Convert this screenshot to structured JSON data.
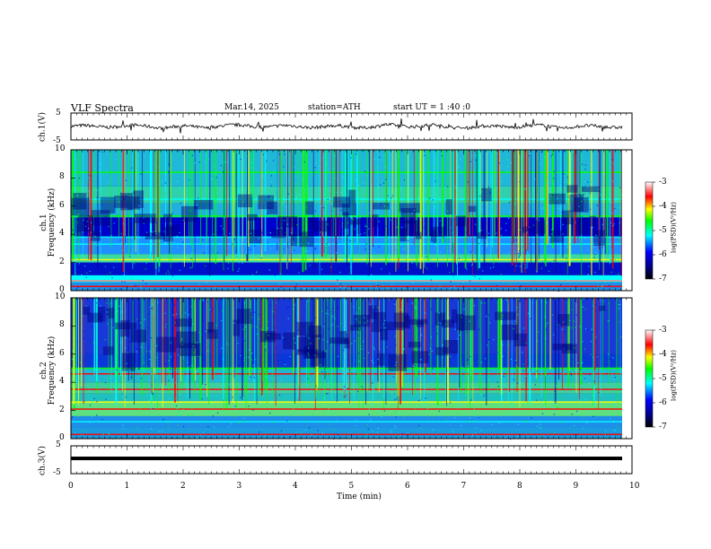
{
  "header": {
    "title": "VLF  Spectra",
    "date": "Mar.14, 2025",
    "station": "station=ATH",
    "start_ut": "start  UT  =   1 :40 :0"
  },
  "panels": {
    "ch1_voltage_label": "ch.1(V)",
    "ch1_spec_label_a": "ch.1",
    "ch1_spec_label_b": "Frequency  (kHz)",
    "ch2_spec_label_a": "ch.2",
    "ch2_spec_label_b": "Frequency  (kHz)",
    "ch3_voltage_label": "ch.3(V)",
    "colorbar_label": "log(PSD)(V²/Hz)"
  },
  "colors": {
    "deep_blue": "#00007f",
    "blue": "#0000ff",
    "cyan": "#00ffff",
    "green": "#00ff00",
    "yellow": "#ffff00",
    "red": "#ff0000",
    "trace": "#000000"
  },
  "chart_data": [
    {
      "type": "line",
      "panel": "ch.1 waveform",
      "ylabel": "ch.1(V)",
      "ylim": [
        -5,
        5
      ],
      "yticks": [
        "5",
        "-5"
      ],
      "x": [
        0,
        1,
        2,
        3,
        4,
        5,
        6,
        7,
        8,
        9,
        9.8
      ],
      "series": [
        {
          "values": [
            0,
            0.1,
            -0.2,
            0.2,
            0,
            -0.1,
            0.3,
            -0.2,
            0.1,
            -0.1,
            0
          ]
        }
      ]
    },
    {
      "type": "heatmap",
      "panel": "ch.1 spectrogram",
      "ylabel": "Frequency  (kHz)",
      "ylim": [
        0,
        10
      ],
      "yticks": [
        "10",
        "8",
        "6",
        "4",
        "2",
        "0"
      ],
      "colorbar": {
        "label": "log(PSD)(V²/Hz)",
        "range": [
          -7,
          -3
        ],
        "ticks": [
          "-3",
          "-4",
          "-5",
          "-6",
          "-7"
        ]
      }
    },
    {
      "type": "heatmap",
      "panel": "ch.2 spectrogram",
      "ylabel": "Frequency  (kHz)",
      "ylim": [
        0,
        10
      ],
      "yticks": [
        "10",
        "8",
        "6",
        "4",
        "2",
        "0"
      ],
      "colorbar": {
        "label": "log(PSD)(V²/Hz)",
        "range": [
          -7,
          -3
        ],
        "ticks": [
          "-3",
          "-4",
          "-5",
          "-6",
          "-7"
        ]
      }
    },
    {
      "type": "line",
      "panel": "ch.3 waveform",
      "ylabel": "ch.3(V)",
      "ylim": [
        -5,
        5
      ],
      "yticks": [
        "5",
        "-5"
      ],
      "x": [
        0,
        9.8
      ],
      "series": [
        {
          "values": [
            -1.7,
            -1.7
          ]
        }
      ]
    }
  ],
  "xaxis": {
    "label": "Time  (min)",
    "range": [
      0,
      10
    ],
    "ticks": [
      "0",
      "1",
      "2",
      "3",
      "4",
      "5",
      "6",
      "7",
      "8",
      "9",
      "10"
    ]
  }
}
